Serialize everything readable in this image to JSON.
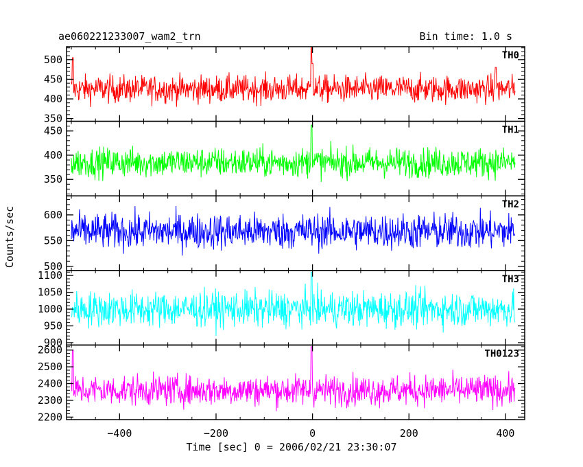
{
  "header": {
    "title": "ae060221233007_wam2_trn",
    "bin_time": "Bin time: 1.0 s"
  },
  "xlabel": "Time [sec] 0 = 2006/02/21 23:30:07",
  "ylabel": "Counts/sec",
  "chart_data": {
    "type": "line",
    "x_range": [
      -510,
      440
    ],
    "x_ticks": [
      -400,
      -200,
      0,
      200,
      400
    ],
    "x_tick_labels": [
      "−400",
      "−200",
      "0",
      "200",
      "400"
    ],
    "bin_seconds": 1.0,
    "panels": [
      {
        "label": "TH0",
        "color": "#ff0000",
        "ylim": [
          343,
          533
        ],
        "y_ticks": [
          350,
          400,
          450,
          500
        ],
        "mean": 425,
        "noise": 25,
        "features": [
          {
            "t": -2,
            "value": 533
          },
          {
            "t": 0,
            "value": 490
          },
          {
            "t": 380,
            "value": 480
          },
          {
            "t": -497,
            "value": 505
          }
        ]
      },
      {
        "label": "TH1",
        "color": "#00ff00",
        "ylim": [
          316,
          470
        ],
        "y_ticks": [
          350,
          400,
          450
        ],
        "mean": 385,
        "noise": 22,
        "features": [
          {
            "t": -2,
            "value": 462
          }
        ]
      },
      {
        "label": "TH2",
        "color": "#0000ff",
        "ylim": [
          492,
          637
        ],
        "y_ticks": [
          500,
          550,
          600
        ],
        "mean": 568,
        "noise": 25,
        "features": []
      },
      {
        "label": "TH3",
        "color": "#00ffff",
        "ylim": [
          893,
          1115
        ],
        "y_ticks": [
          900,
          950,
          1000,
          1050,
          1100
        ],
        "mean": 1000,
        "noise": 38,
        "features": [
          {
            "t": -2,
            "value": 1110
          }
        ]
      },
      {
        "label": "TH0123",
        "color": "#ff00ff",
        "ylim": [
          2185,
          2630
        ],
        "y_ticks": [
          2200,
          2300,
          2400,
          2500,
          2600
        ],
        "mean": 2360,
        "noise": 65,
        "features": [
          {
            "t": -2,
            "value": 2620
          },
          {
            "t": -497,
            "value": 2600
          }
        ]
      }
    ]
  }
}
